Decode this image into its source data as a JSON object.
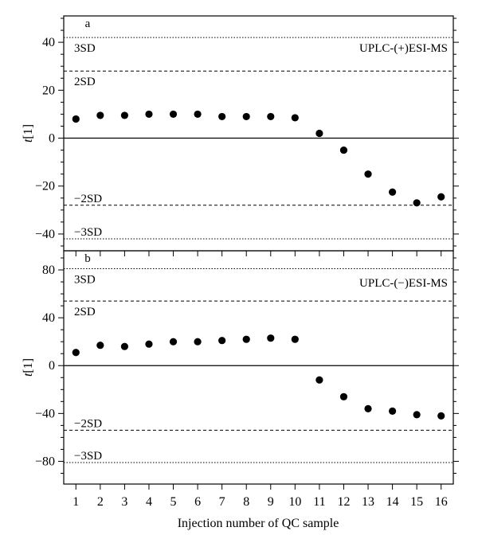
{
  "chart_data": [
    {
      "type": "scatter",
      "panel_label": "a",
      "method_label": "UPLC-(+)ESI-MS",
      "x": [
        1,
        2,
        3,
        4,
        5,
        6,
        7,
        8,
        9,
        10,
        11,
        12,
        13,
        14,
        15,
        16
      ],
      "y": [
        8,
        9.5,
        9.5,
        10,
        10,
        10,
        9,
        9,
        9,
        8.5,
        2,
        -5,
        -15,
        -22.5,
        -27,
        -24.5
      ],
      "ylabel": "t[1]",
      "ylim": [
        -47,
        51
      ],
      "yticks": [
        40,
        20,
        0,
        -20,
        -40
      ],
      "ytick_labels": [
        "40",
        "20",
        "0",
        "−20",
        "−40"
      ],
      "zero_line": 0,
      "reference_lines": [
        {
          "label": "3SD",
          "value": 42,
          "style": "dotted"
        },
        {
          "label": "2SD",
          "value": 28,
          "style": "dashed"
        },
        {
          "label": "−2SD",
          "value": -28,
          "style": "dashed"
        },
        {
          "label": "−3SD",
          "value": -42,
          "style": "dotted"
        }
      ]
    },
    {
      "type": "scatter",
      "panel_label": "b",
      "method_label": "UPLC-(−)ESI-MS",
      "x": [
        1,
        2,
        3,
        4,
        5,
        6,
        7,
        8,
        9,
        10,
        11,
        12,
        13,
        14,
        15,
        16
      ],
      "y": [
        11,
        17,
        16,
        18,
        20,
        20,
        21,
        22,
        23,
        22,
        -12,
        -26,
        -36,
        -38,
        -41,
        -42
      ],
      "xlabel": "Injection number of QC sample",
      "ylabel": "t[1]",
      "xlim": [
        0.5,
        16.5
      ],
      "ylim": [
        -99,
        96
      ],
      "xticks": [
        "1",
        "2",
        "3",
        "4",
        "5",
        "6",
        "7",
        "8",
        "9",
        "10",
        "11",
        "12",
        "13",
        "14",
        "15",
        "16"
      ],
      "yticks": [
        80,
        40,
        0,
        -40,
        -80
      ],
      "ytick_labels": [
        "80",
        "40",
        "0",
        "−40",
        "−80"
      ],
      "zero_line": 0,
      "reference_lines": [
        {
          "label": "3SD",
          "value": 81,
          "style": "dotted"
        },
        {
          "label": "2SD",
          "value": 54,
          "style": "dashed"
        },
        {
          "label": "−2SD",
          "value": -54,
          "style": "dashed"
        },
        {
          "label": "−3SD",
          "value": -81,
          "style": "dotted"
        }
      ]
    }
  ]
}
